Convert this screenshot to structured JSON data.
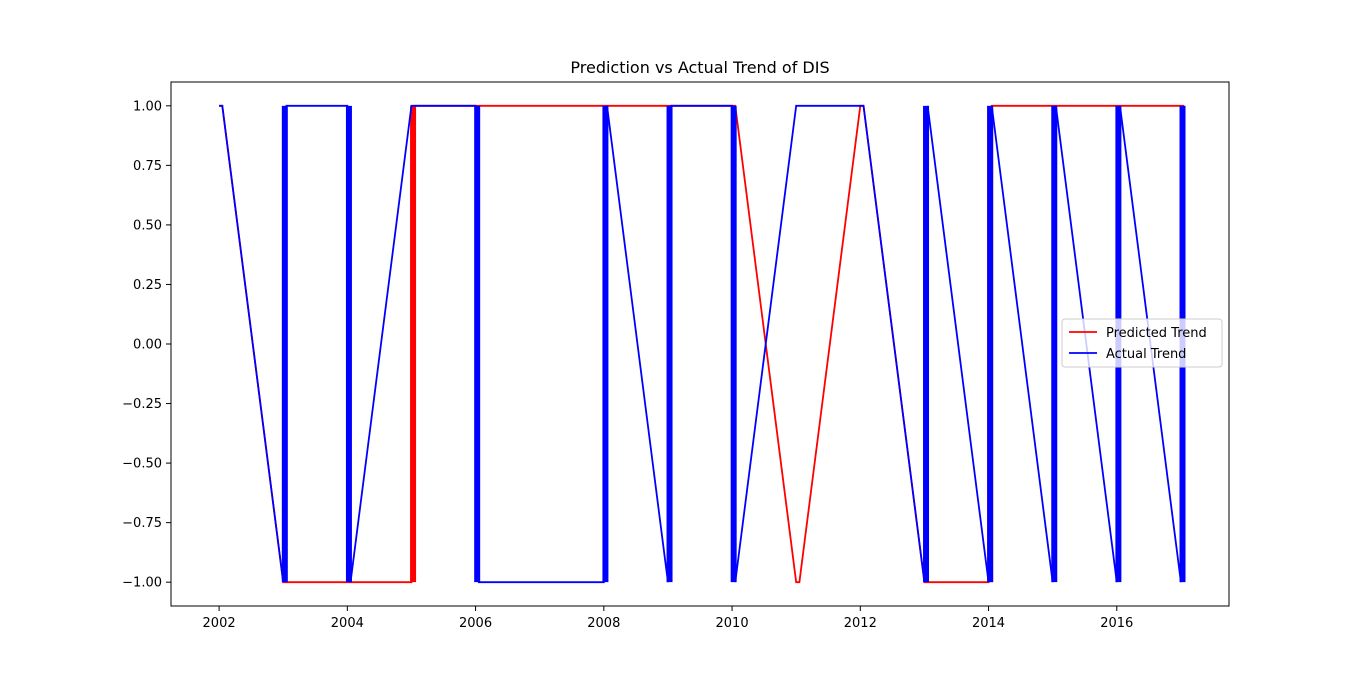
{
  "chart_data": {
    "type": "line",
    "title": "Prediction vs Actual Trend of DIS",
    "xlabel": "",
    "ylabel": "",
    "xlim": [
      2001.25,
      2017.75
    ],
    "ylim": [
      -1.1,
      1.1
    ],
    "x_ticks": [
      2002,
      2004,
      2006,
      2008,
      2010,
      2012,
      2014,
      2016
    ],
    "x_tick_labels": [
      "2002",
      "2004",
      "2006",
      "2008",
      "2010",
      "2012",
      "2014",
      "2016"
    ],
    "y_ticks": [
      1.0,
      0.75,
      0.5,
      0.25,
      0.0,
      -0.25,
      -0.5,
      -0.75,
      -1.0
    ],
    "y_tick_labels": [
      "1.00",
      "0.75",
      "0.50",
      "0.25",
      "0.00",
      "−0.25",
      "−0.50",
      "−0.75",
      "−1.00"
    ],
    "legend": {
      "location": "center right",
      "entries": [
        "Predicted Trend",
        "Actual Trend"
      ]
    },
    "grid": false,
    "series": [
      {
        "name": "Predicted Trend",
        "color": "#ff0000",
        "x": [
          2002.0,
          2002.05,
          2003.0,
          2003.05,
          2004.0,
          2004.05,
          2005.0,
          2005.05,
          2006.0,
          2006.05,
          2007.0,
          2007.05,
          2008.0,
          2008.05,
          2009.0,
          2009.05,
          2010.0,
          2010.05,
          2011.0,
          2011.05,
          2012.0,
          2012.05,
          2013.0,
          2013.05,
          2014.0,
          2014.05,
          2015.0,
          2015.05,
          2016.0,
          2016.05,
          2017.0,
          2017.05
        ],
        "y": [
          1,
          1,
          -1,
          -1,
          -1,
          -1,
          -1,
          1,
          1,
          1,
          1,
          1,
          1,
          1,
          1,
          1,
          1,
          1,
          -1,
          -1,
          1,
          1,
          -1,
          -1,
          -1,
          1,
          1,
          1,
          1,
          1,
          1,
          1
        ]
      },
      {
        "name": "Actual Trend",
        "color": "#0000ff",
        "x": [
          2002.0,
          2002.05,
          2003.0,
          2003.05,
          2004.0,
          2004.05,
          2005.0,
          2005.05,
          2006.0,
          2006.05,
          2007.0,
          2007.05,
          2008.0,
          2008.05,
          2009.0,
          2009.05,
          2010.0,
          2010.05,
          2011.0,
          2011.05,
          2012.0,
          2012.05,
          2013.0,
          2013.05,
          2014.0,
          2014.05,
          2015.0,
          2015.05,
          2016.0,
          2016.05,
          2017.0,
          2017.05
        ],
        "y": [
          1,
          1,
          -1,
          1,
          1,
          -1,
          1,
          1,
          1,
          -1,
          -1,
          -1,
          -1,
          1,
          -1,
          1,
          1,
          -1,
          1,
          1,
          1,
          1,
          -1,
          1,
          -1,
          1,
          -1,
          1,
          -1,
          1,
          -1,
          1
        ]
      }
    ]
  }
}
